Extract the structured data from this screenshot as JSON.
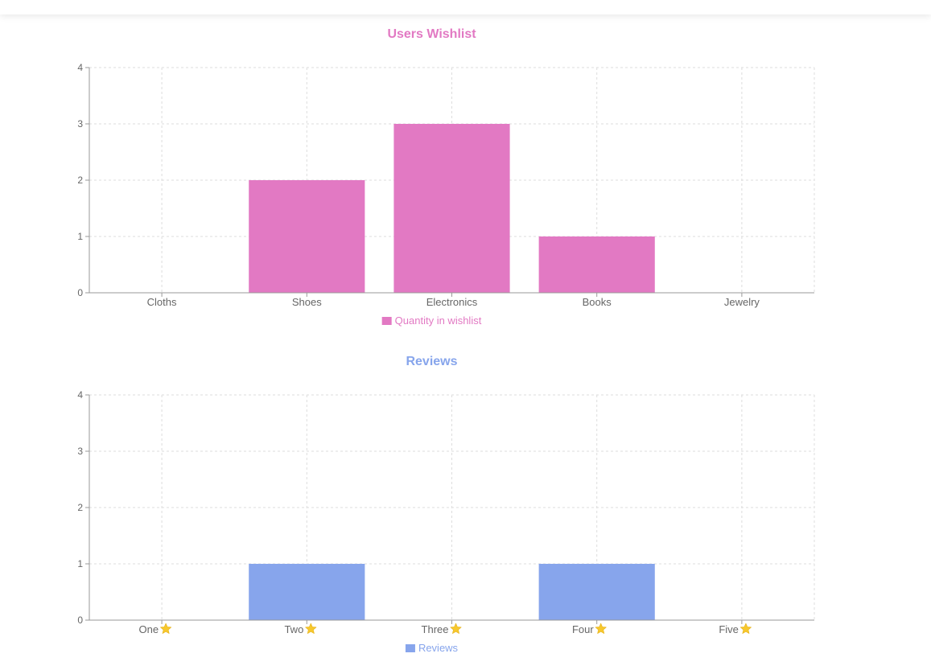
{
  "chart_data": [
    {
      "type": "bar",
      "title": "Users Wishlist",
      "categories": [
        "Cloths",
        "Shoes",
        "Electronics",
        "Books",
        "Jewelry"
      ],
      "series": [
        {
          "name": "Quantity in wishlist",
          "values": [
            0,
            2,
            3,
            1,
            0
          ]
        }
      ],
      "ylim": [
        0,
        4
      ],
      "yticks": [
        0,
        1,
        2,
        3,
        4
      ],
      "grid": true,
      "legend": "bottom",
      "color": "#e279c3"
    },
    {
      "type": "bar",
      "title": "Reviews",
      "categories": [
        "One",
        "Two",
        "Three",
        "Four",
        "Five"
      ],
      "category_icon": "star-icon",
      "series": [
        {
          "name": "Reviews",
          "values": [
            0,
            1,
            0,
            1,
            0
          ]
        }
      ],
      "ylim": [
        0,
        4
      ],
      "yticks": [
        0,
        1,
        2,
        3,
        4
      ],
      "grid": true,
      "legend": "bottom",
      "color": "#87a5ec",
      "icon_color": "#f7c82d"
    }
  ]
}
